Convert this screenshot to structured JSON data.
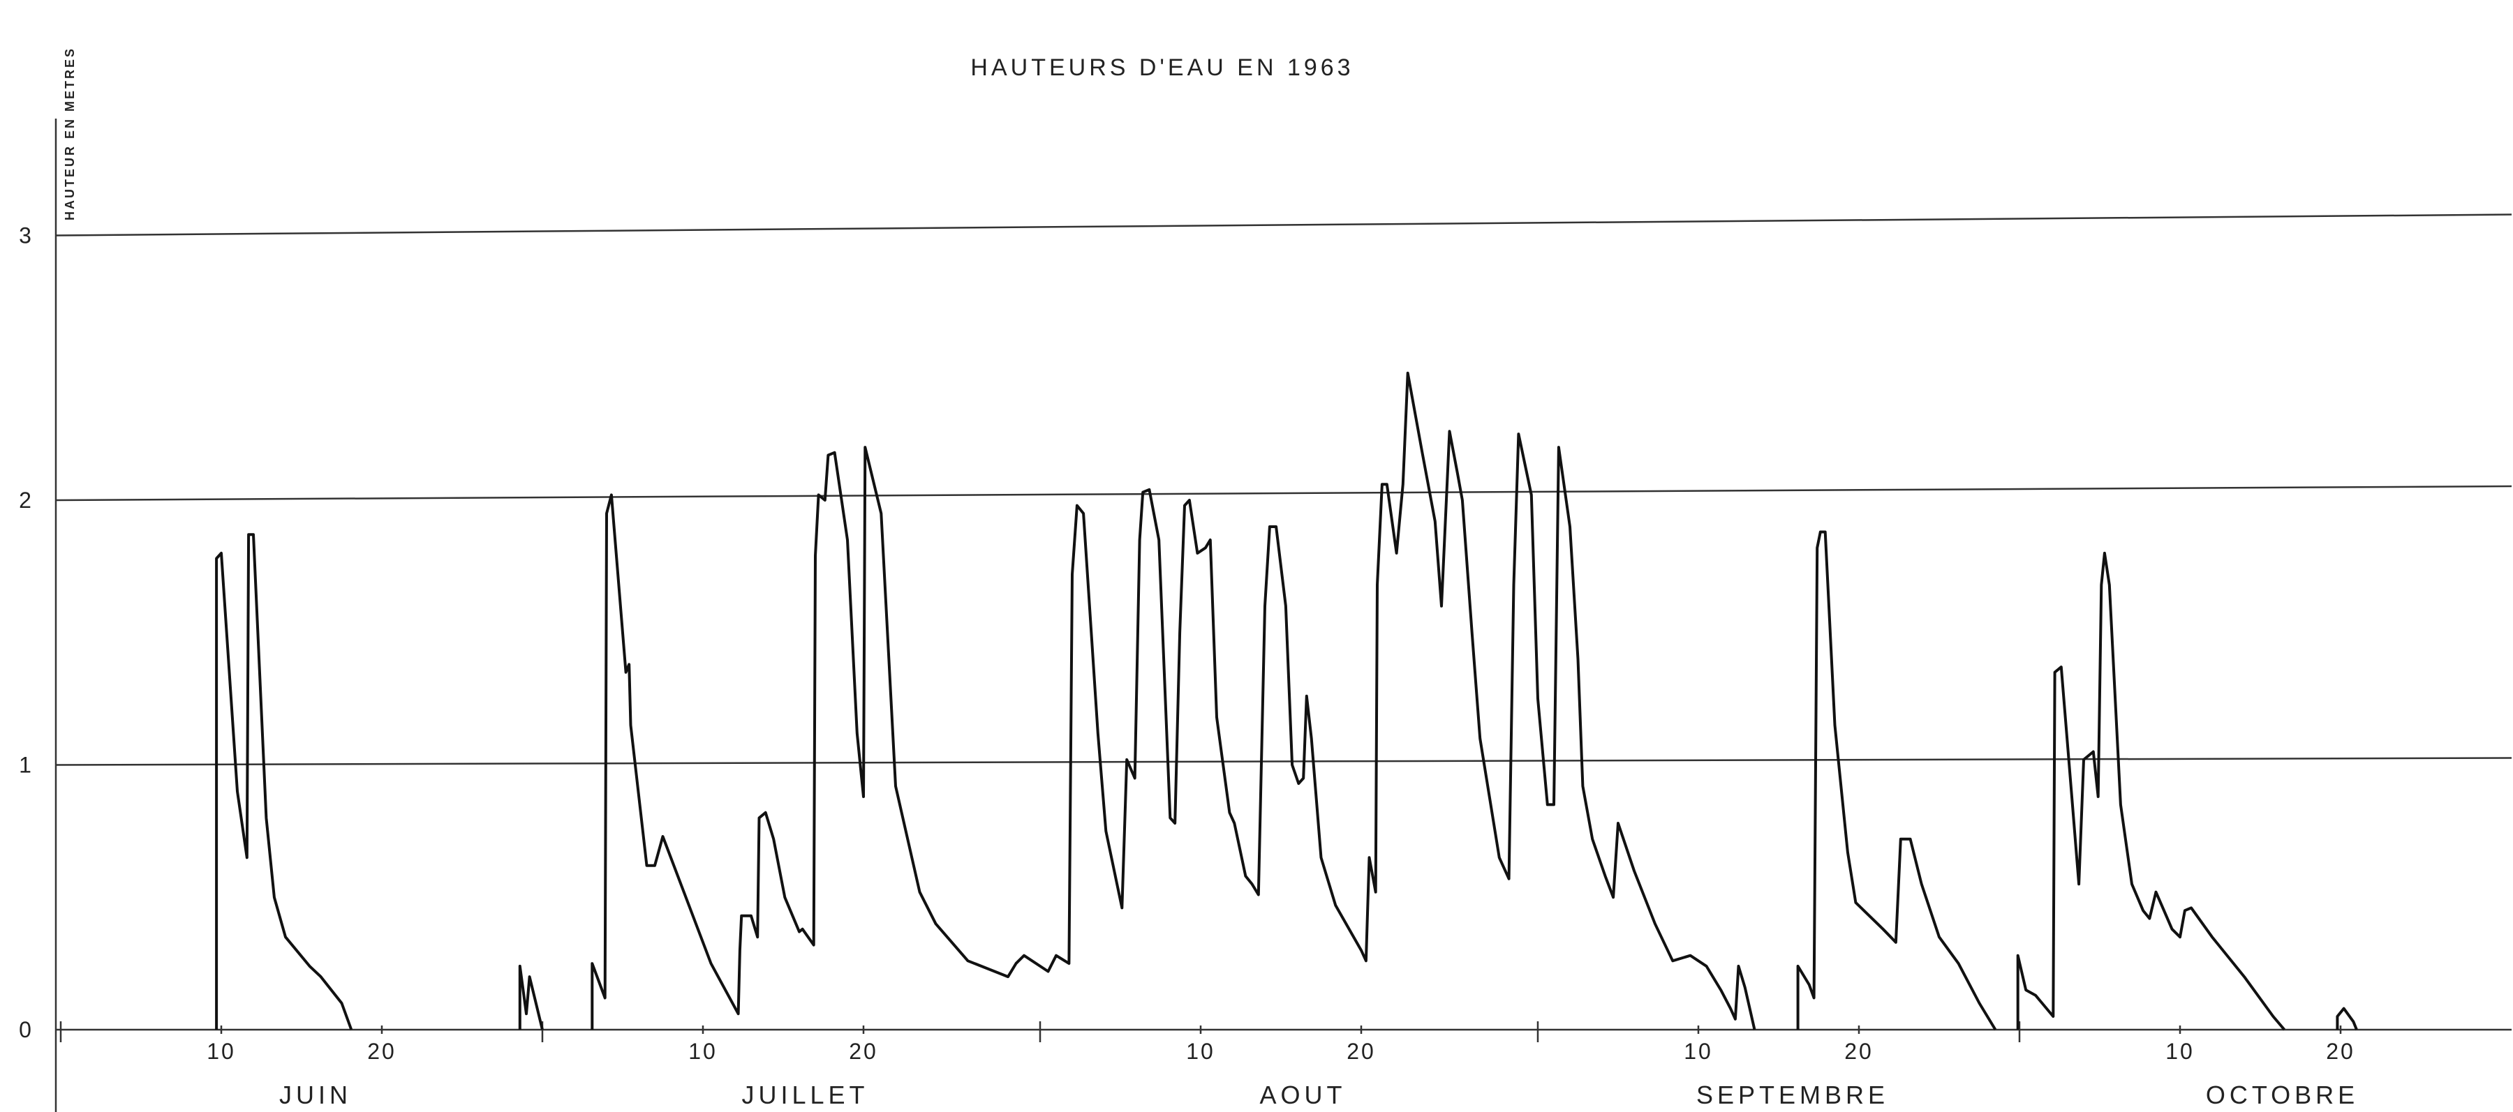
{
  "chart_data": {
    "type": "line",
    "title": "HAUTEURS D'EAU EN 1963",
    "ylabel": "HAUTEUR EN METRES",
    "xlabel": "",
    "ylim": [
      0,
      3
    ],
    "yticks": [
      "0",
      "1",
      "2",
      "3"
    ],
    "grid": "horizontal",
    "x_unit": "day index from 1 June 1963",
    "months": [
      {
        "label": "JUIN",
        "start_day": 1,
        "ticks": [
          {
            "day": 10,
            "label": "10"
          },
          {
            "day": 20,
            "label": "20"
          }
        ]
      },
      {
        "label": "JUILLET",
        "start_day": 31,
        "ticks": [
          {
            "day": 40,
            "label": "10"
          },
          {
            "day": 50,
            "label": "20"
          }
        ]
      },
      {
        "label": "AOUT",
        "start_day": 62,
        "ticks": [
          {
            "day": 71,
            "label": "10"
          },
          {
            "day": 81,
            "label": "20"
          }
        ]
      },
      {
        "label": "SEPTEMBRE",
        "start_day": 93,
        "ticks": [
          {
            "day": 102,
            "label": "10"
          },
          {
            "day": 112,
            "label": "20"
          }
        ]
      },
      {
        "label": "OCTOBRE",
        "start_day": 123,
        "ticks": [
          {
            "day": 132,
            "label": "10"
          },
          {
            "day": 142,
            "label": "20"
          }
        ]
      }
    ],
    "series": [
      {
        "segments": [
          [
            [
              9.7,
              0
            ],
            [
              9.7,
              1.78
            ],
            [
              10.0,
              1.8
            ],
            [
              11.0,
              0.9
            ],
            [
              11.6,
              0.65
            ],
            [
              11.7,
              1.87
            ],
            [
              12.0,
              1.87
            ],
            [
              12.8,
              0.8
            ],
            [
              13.3,
              0.5
            ],
            [
              14.0,
              0.35
            ],
            [
              15.5,
              0.24
            ],
            [
              16.2,
              0.2
            ],
            [
              17.5,
              0.1
            ],
            [
              18.1,
              0
            ]
          ],
          [
            [
              28.6,
              0
            ],
            [
              28.6,
              0.24
            ],
            [
              29.0,
              0.06
            ],
            [
              29.2,
              0.2
            ],
            [
              30.0,
              0
            ]
          ],
          [
            [
              33.1,
              0
            ],
            [
              33.1,
              0.25
            ],
            [
              33.9,
              0.12
            ],
            [
              34.0,
              1.95
            ],
            [
              34.3,
              2.02
            ],
            [
              35.2,
              1.35
            ],
            [
              35.4,
              1.38
            ],
            [
              35.5,
              1.15
            ],
            [
              36.5,
              0.62
            ],
            [
              37.0,
              0.62
            ],
            [
              37.5,
              0.73
            ],
            [
              40.5,
              0.25
            ],
            [
              42.2,
              0.06
            ],
            [
              42.3,
              0.3
            ],
            [
              42.4,
              0.43
            ],
            [
              43.0,
              0.43
            ],
            [
              43.4,
              0.35
            ],
            [
              43.5,
              0.8
            ],
            [
              43.9,
              0.82
            ],
            [
              44.4,
              0.72
            ],
            [
              45.1,
              0.5
            ],
            [
              46.0,
              0.37
            ],
            [
              46.2,
              0.38
            ],
            [
              46.9,
              0.32
            ],
            [
              47.0,
              1.79
            ],
            [
              47.2,
              2.02
            ],
            [
              47.6,
              2.0
            ],
            [
              47.8,
              2.17
            ],
            [
              48.2,
              2.18
            ],
            [
              49.0,
              1.85
            ],
            [
              49.6,
              1.12
            ],
            [
              50.0,
              0.88
            ],
            [
              50.1,
              2.2
            ],
            [
              51.1,
              1.95
            ],
            [
              52.0,
              0.92
            ],
            [
              53.5,
              0.52
            ],
            [
              54.5,
              0.4
            ],
            [
              56.5,
              0.26
            ],
            [
              59.0,
              0.2
            ],
            [
              59.5,
              0.25
            ],
            [
              60.0,
              0.28
            ],
            [
              61.5,
              0.22
            ],
            [
              62.0,
              0.28
            ],
            [
              62.8,
              0.25
            ],
            [
              63.0,
              1.72
            ],
            [
              63.3,
              1.98
            ],
            [
              63.7,
              1.95
            ],
            [
              64.6,
              1.12
            ],
            [
              65.1,
              0.75
            ],
            [
              66.1,
              0.46
            ],
            [
              66.4,
              1.02
            ],
            [
              66.9,
              0.95
            ],
            [
              67.2,
              1.85
            ],
            [
              67.4,
              2.03
            ],
            [
              67.8,
              2.04
            ],
            [
              68.4,
              1.85
            ],
            [
              68.6,
              1.55
            ],
            [
              69.1,
              0.8
            ],
            [
              69.4,
              0.78
            ],
            [
              69.7,
              1.5
            ],
            [
              70.0,
              1.98
            ],
            [
              70.3,
              2.0
            ],
            [
              70.8,
              1.8
            ],
            [
              71.3,
              1.82
            ],
            [
              71.6,
              1.85
            ],
            [
              72.0,
              1.18
            ],
            [
              72.8,
              0.82
            ],
            [
              73.1,
              0.78
            ],
            [
              73.8,
              0.58
            ],
            [
              74.2,
              0.55
            ],
            [
              74.6,
              0.51
            ],
            [
              75.0,
              1.6
            ],
            [
              75.3,
              1.9
            ],
            [
              75.7,
              1.9
            ],
            [
              76.3,
              1.6
            ],
            [
              76.7,
              1.0
            ],
            [
              77.1,
              0.93
            ],
            [
              77.4,
              0.95
            ],
            [
              77.6,
              1.26
            ],
            [
              77.9,
              1.1
            ],
            [
              78.5,
              0.65
            ],
            [
              79.4,
              0.47
            ],
            [
              81.0,
              0.3
            ],
            [
              81.3,
              0.26
            ],
            [
              81.5,
              0.65
            ],
            [
              81.9,
              0.52
            ],
            [
              82.0,
              1.68
            ],
            [
              82.3,
              2.06
            ],
            [
              82.6,
              2.06
            ],
            [
              83.2,
              1.8
            ],
            [
              83.6,
              2.06
            ],
            [
              83.9,
              2.48
            ],
            [
              84.8,
              2.18
            ],
            [
              85.6,
              1.92
            ],
            [
              86.0,
              1.6
            ],
            [
              86.5,
              2.26
            ],
            [
              87.0,
              2.1
            ],
            [
              87.3,
              2.0
            ],
            [
              87.9,
              1.5
            ],
            [
              88.4,
              1.1
            ],
            [
              89.6,
              0.65
            ],
            [
              90.2,
              0.57
            ],
            [
              90.5,
              1.68
            ],
            [
              90.8,
              2.25
            ],
            [
              91.6,
              2.02
            ],
            [
              92.0,
              1.25
            ],
            [
              92.6,
              0.85
            ],
            [
              93.0,
              0.85
            ],
            [
              93.3,
              2.2
            ],
            [
              94.0,
              1.9
            ],
            [
              94.5,
              1.4
            ],
            [
              94.8,
              0.92
            ],
            [
              95.4,
              0.72
            ],
            [
              96.2,
              0.58
            ],
            [
              96.7,
              0.5
            ],
            [
              97.0,
              0.78
            ],
            [
              98.0,
              0.6
            ],
            [
              99.3,
              0.4
            ],
            [
              100.4,
              0.26
            ],
            [
              101.5,
              0.28
            ],
            [
              102.5,
              0.24
            ],
            [
              103.4,
              0.15
            ],
            [
              104.0,
              0.08
            ],
            [
              104.3,
              0.04
            ],
            [
              104.5,
              0.24
            ],
            [
              104.9,
              0.16
            ],
            [
              105.5,
              0
            ]
          ],
          [
            [
              108.2,
              0
            ],
            [
              108.2,
              0.24
            ],
            [
              108.9,
              0.17
            ],
            [
              109.2,
              0.12
            ],
            [
              109.4,
              1.82
            ],
            [
              109.6,
              1.88
            ],
            [
              109.9,
              1.88
            ],
            [
              110.5,
              1.15
            ],
            [
              111.3,
              0.67
            ],
            [
              111.8,
              0.48
            ],
            [
              113.5,
              0.38
            ],
            [
              114.3,
              0.33
            ],
            [
              114.6,
              0.72
            ],
            [
              115.2,
              0.72
            ],
            [
              115.9,
              0.55
            ],
            [
              117.0,
              0.35
            ],
            [
              118.2,
              0.25
            ],
            [
              119.5,
              0.1
            ],
            [
              120.5,
              0
            ]
          ],
          [
            [
              121.9,
              0
            ],
            [
              121.9,
              0.28
            ],
            [
              122.4,
              0.15
            ],
            [
              123.0,
              0.13
            ],
            [
              124.1,
              0.05
            ],
            [
              124.2,
              1.35
            ],
            [
              124.6,
              1.37
            ],
            [
              125.3,
              0.85
            ],
            [
              125.7,
              0.55
            ],
            [
              126.0,
              1.02
            ],
            [
              126.6,
              1.05
            ],
            [
              126.9,
              0.88
            ],
            [
              127.1,
              1.68
            ],
            [
              127.3,
              1.8
            ],
            [
              127.6,
              1.68
            ],
            [
              128.3,
              0.85
            ],
            [
              129.0,
              0.55
            ],
            [
              129.7,
              0.45
            ],
            [
              130.1,
              0.42
            ],
            [
              130.5,
              0.52
            ],
            [
              131.0,
              0.45
            ],
            [
              131.5,
              0.38
            ],
            [
              132.0,
              0.35
            ],
            [
              132.3,
              0.45
            ],
            [
              132.7,
              0.46
            ],
            [
              134.0,
              0.35
            ],
            [
              136.0,
              0.2
            ],
            [
              137.8,
              0.05
            ],
            [
              138.5,
              0
            ]
          ],
          [
            [
              141.8,
              0
            ],
            [
              141.8,
              0.05
            ],
            [
              142.2,
              0.08
            ],
            [
              142.8,
              0.03
            ],
            [
              143.0,
              0
            ]
          ]
        ]
      }
    ]
  }
}
